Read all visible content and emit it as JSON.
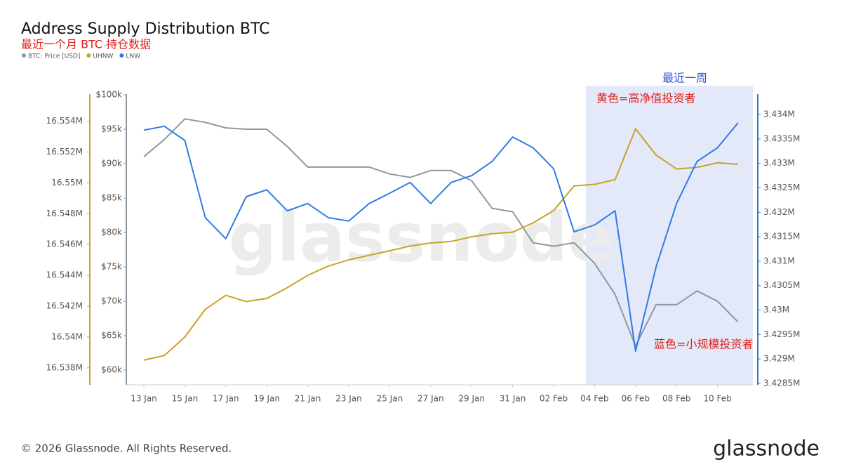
{
  "chart_data": {
    "type": "line",
    "title": "Address Supply Distribution BTC",
    "subtitle": "最近一个月 BTC 持仓数据",
    "watermark": "glassnode",
    "footer": "© 2026 Glassnode. All Rights Reserved.",
    "logo": "glassnode",
    "annotations": [
      "最近一周",
      "黄色=高净值投资者",
      "蓝色=小规模投资者"
    ],
    "x": [
      "13 Jan",
      "14 Jan",
      "15 Jan",
      "16 Jan",
      "17 Jan",
      "18 Jan",
      "19 Jan",
      "20 Jan",
      "21 Jan",
      "22 Jan",
      "23 Jan",
      "24 Jan",
      "25 Jan",
      "26 Jan",
      "27 Jan",
      "28 Jan",
      "29 Jan",
      "30 Jan",
      "31 Jan",
      "01 Feb",
      "02 Feb",
      "03 Feb",
      "04 Feb",
      "05 Feb",
      "06 Feb",
      "07 Feb",
      "08 Feb",
      "09 Feb",
      "10 Feb",
      "11 Feb"
    ],
    "xticks": [
      "13 Jan",
      "15 Jan",
      "17 Jan",
      "19 Jan",
      "21 Jan",
      "23 Jan",
      "25 Jan",
      "27 Jan",
      "29 Jan",
      "31 Jan",
      "02 Feb",
      "04 Feb",
      "06 Feb",
      "08 Feb",
      "10 Feb"
    ],
    "series": [
      {
        "name": "BTC: Price [USD]",
        "color": "#8c99a3",
        "axis": "y",
        "values": [
          91000,
          93500,
          96500,
          96000,
          95200,
          95000,
          95000,
          92500,
          89500,
          89500,
          89500,
          89500,
          88500,
          88000,
          89000,
          89000,
          87500,
          83500,
          83000,
          78500,
          78000,
          78500,
          75500,
          71000,
          63500,
          69500,
          69500,
          71500,
          70000,
          67000
        ]
      },
      {
        "name": "UHNW",
        "color": "#c9a227",
        "axis": "y2",
        "values": [
          16538500,
          16538800,
          16540000,
          16541800,
          16542700,
          16542300,
          16542500,
          16543200,
          16544000,
          16544600,
          16545000,
          16545300,
          16545600,
          16545900,
          16546100,
          16546200,
          16546500,
          16546700,
          16546800,
          16547400,
          16548200,
          16549800,
          16549900,
          16550200,
          16553500,
          16551800,
          16550900,
          16551000,
          16551300,
          16551200
        ]
      },
      {
        "name": "LNW",
        "color": "#2f7be5",
        "axis": "y3",
        "values": [
          3433680,
          3433760,
          3433470,
          3431890,
          3431460,
          3432320,
          3432460,
          3432030,
          3432180,
          3431890,
          3431820,
          3432180,
          3432390,
          3432610,
          3432180,
          3432610,
          3432750,
          3433040,
          3433540,
          3433320,
          3432890,
          3431600,
          3431740,
          3432030,
          3429160,
          3430880,
          3432180,
          3433040,
          3433320,
          3433830
        ]
      }
    ],
    "ylim": [
      57860,
      101330
    ],
    "yticks": [
      {
        "value": 60000,
        "label": "$60k"
      },
      {
        "value": 65000,
        "label": "$65k"
      },
      {
        "value": 70000,
        "label": "$70k"
      },
      {
        "value": 75000,
        "label": "$75k"
      },
      {
        "value": 80000,
        "label": "$80k"
      },
      {
        "value": 85000,
        "label": "$85k"
      },
      {
        "value": 90000,
        "label": "$90k"
      },
      {
        "value": 95000,
        "label": "$95k"
      },
      {
        "value": 100000,
        "label": "$100k"
      }
    ],
    "y2lim": [
      16536900,
      16556300
    ],
    "y2ticks": [
      {
        "value": 16538000,
        "label": "16.538M"
      },
      {
        "value": 16540000,
        "label": "16.54M"
      },
      {
        "value": 16542000,
        "label": "16.542M"
      },
      {
        "value": 16544000,
        "label": "16.544M"
      },
      {
        "value": 16546000,
        "label": "16.546M"
      },
      {
        "value": 16548000,
        "label": "16.548M"
      },
      {
        "value": 16550000,
        "label": "16.55M"
      },
      {
        "value": 16552000,
        "label": "16.552M"
      },
      {
        "value": 16554000,
        "label": "16.554M"
      }
    ],
    "y3lim": [
      3428470,
      3434590
    ],
    "y3ticks": [
      {
        "value": 3428500,
        "label": "3.4285M"
      },
      {
        "value": 3429000,
        "label": "3.429M"
      },
      {
        "value": 3429500,
        "label": "3.4295M"
      },
      {
        "value": 3430000,
        "label": "3.43M"
      },
      {
        "value": 3430500,
        "label": "3.4305M"
      },
      {
        "value": 3431000,
        "label": "3.431M"
      },
      {
        "value": 3431500,
        "label": "3.4315M"
      },
      {
        "value": 3432000,
        "label": "3.432M"
      },
      {
        "value": 3432500,
        "label": "3.4325M"
      },
      {
        "value": 3433000,
        "label": "3.433M"
      },
      {
        "value": 3433500,
        "label": "3.4335M"
      },
      {
        "value": 3434000,
        "label": "3.434M"
      }
    ]
  }
}
